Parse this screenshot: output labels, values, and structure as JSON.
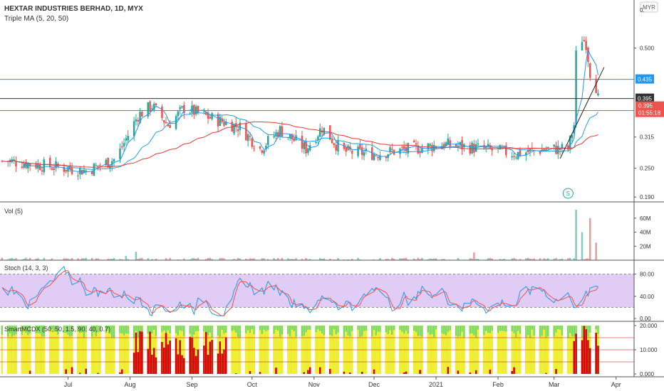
{
  "header": {
    "symbol_line": "HEXTAR INDUSTRIES BERHAD, 1D, MYX",
    "indicator": "Triple MA (5, 20, 50)"
  },
  "currency_badge": "MYR",
  "colors": {
    "up": "#26a69a",
    "down": "#ef5350",
    "ma5": "#2196f3",
    "ma20": "#26a0d8",
    "ma50": "#e53935",
    "hline": "#2196f3"
  },
  "chart_data": [
    {
      "type": "candlestick",
      "ylim": [
        0.18,
        0.6
      ],
      "y_ticks": [
        {
          "value": 0.19,
          "label": "0.190"
        },
        {
          "value": 0.25,
          "label": "0.250"
        },
        {
          "value": 0.315,
          "label": "0.315"
        },
        {
          "value": 0.5,
          "label": "0.500"
        }
      ],
      "top_tick_label": "0.",
      "anchors": [
        {
          "date": "2020-06-01",
          "close": 0.265
        },
        {
          "date": "2020-06-20",
          "close": 0.255
        },
        {
          "date": "2020-07-10",
          "close": 0.245
        },
        {
          "date": "2020-07-25",
          "close": 0.27
        },
        {
          "date": "2020-08-05",
          "close": 0.36
        },
        {
          "date": "2020-08-12",
          "close": 0.38
        },
        {
          "date": "2020-08-20",
          "close": 0.34
        },
        {
          "date": "2020-08-28",
          "close": 0.375
        },
        {
          "date": "2020-09-10",
          "close": 0.355
        },
        {
          "date": "2020-09-25",
          "close": 0.335
        },
        {
          "date": "2020-10-05",
          "close": 0.29
        },
        {
          "date": "2020-10-15",
          "close": 0.33
        },
        {
          "date": "2020-10-28",
          "close": 0.29
        },
        {
          "date": "2020-11-05",
          "close": 0.335
        },
        {
          "date": "2020-11-15",
          "close": 0.285
        },
        {
          "date": "2020-12-01",
          "close": 0.28
        },
        {
          "date": "2020-12-20",
          "close": 0.29
        },
        {
          "date": "2021-01-05",
          "close": 0.3
        },
        {
          "date": "2021-01-25",
          "close": 0.29
        },
        {
          "date": "2021-02-10",
          "close": 0.28
        },
        {
          "date": "2021-02-25",
          "close": 0.29
        },
        {
          "date": "2021-03-08",
          "close": 0.29
        },
        {
          "date": "2021-03-11",
          "close": 0.34
        },
        {
          "date": "2021-03-12",
          "close": 0.485
        },
        {
          "date": "2021-03-15",
          "close": 0.52
        },
        {
          "date": "2021-03-17",
          "close": 0.51
        },
        {
          "date": "2021-03-19",
          "close": 0.45
        },
        {
          "date": "2021-03-22",
          "close": 0.42
        },
        {
          "date": "2021-03-23",
          "close": 0.395
        }
      ],
      "horizontal_lines": [
        {
          "value": 0.435,
          "label": "0.435",
          "color": "#2196f3"
        },
        {
          "value": 0.395,
          "label": "0.395",
          "color": "#333333"
        },
        {
          "value": 0.37,
          "label": "0.370",
          "color": "#2196f3"
        }
      ],
      "last_price": {
        "value": 0.395,
        "label": "0.395",
        "countdown": "01:55:18"
      },
      "dividend_marker": {
        "date": "2021-03-08",
        "label": "S"
      }
    },
    {
      "type": "bar",
      "title": "Vol (5)",
      "y_ticks": [
        {
          "value": 20,
          "label": "20M"
        },
        {
          "value": 40,
          "label": "40M"
        },
        {
          "value": 60,
          "label": "60M"
        }
      ],
      "ylim": [
        0,
        75
      ],
      "spikes": [
        {
          "date": "2020-07-30",
          "value": 6
        },
        {
          "date": "2020-08-04",
          "value": 12
        },
        {
          "date": "2020-09-12",
          "value": 15
        },
        {
          "date": "2020-11-01",
          "value": 12
        },
        {
          "date": "2021-01-20",
          "value": 11
        },
        {
          "date": "2021-03-12",
          "value": 72
        },
        {
          "date": "2021-03-15",
          "value": 40
        },
        {
          "date": "2021-03-19",
          "value": 60
        },
        {
          "date": "2021-03-22",
          "value": 25
        }
      ]
    },
    {
      "type": "line",
      "title": "Stoch (14, 3, 3)",
      "ylim": [
        0,
        100
      ],
      "bands": [
        20,
        80
      ],
      "y_ticks": [
        {
          "value": 0,
          "label": "0.00"
        },
        {
          "value": 40,
          "label": "40.00"
        },
        {
          "value": 80,
          "label": "80.00"
        }
      ]
    },
    {
      "type": "bar",
      "title": "SmartMCDX (50, 50, 1.5, 90, 40, 0.7)",
      "ylim": [
        0,
        20
      ],
      "y_ticks": [
        {
          "value": 0,
          "label": "0.000"
        },
        {
          "value": 10,
          "label": "10.000"
        },
        {
          "value": 20,
          "label": "20.000"
        }
      ]
    }
  ],
  "x_axis": {
    "range": [
      "2020-05-28",
      "2021-04-10"
    ],
    "ticks": [
      {
        "date": "2020-07-01",
        "label": "Jul"
      },
      {
        "date": "2020-08-01",
        "label": "Aug"
      },
      {
        "date": "2020-09-01",
        "label": "Sep"
      },
      {
        "date": "2020-10-01",
        "label": "Oct"
      },
      {
        "date": "2020-11-01",
        "label": "Nov"
      },
      {
        "date": "2020-12-01",
        "label": "Dec"
      },
      {
        "date": "2021-01-01",
        "label": "2021"
      },
      {
        "date": "2021-02-01",
        "label": "Feb"
      },
      {
        "date": "2021-03-01",
        "label": "Mar"
      },
      {
        "date": "2021-04-01",
        "label": "Apr"
      }
    ]
  }
}
